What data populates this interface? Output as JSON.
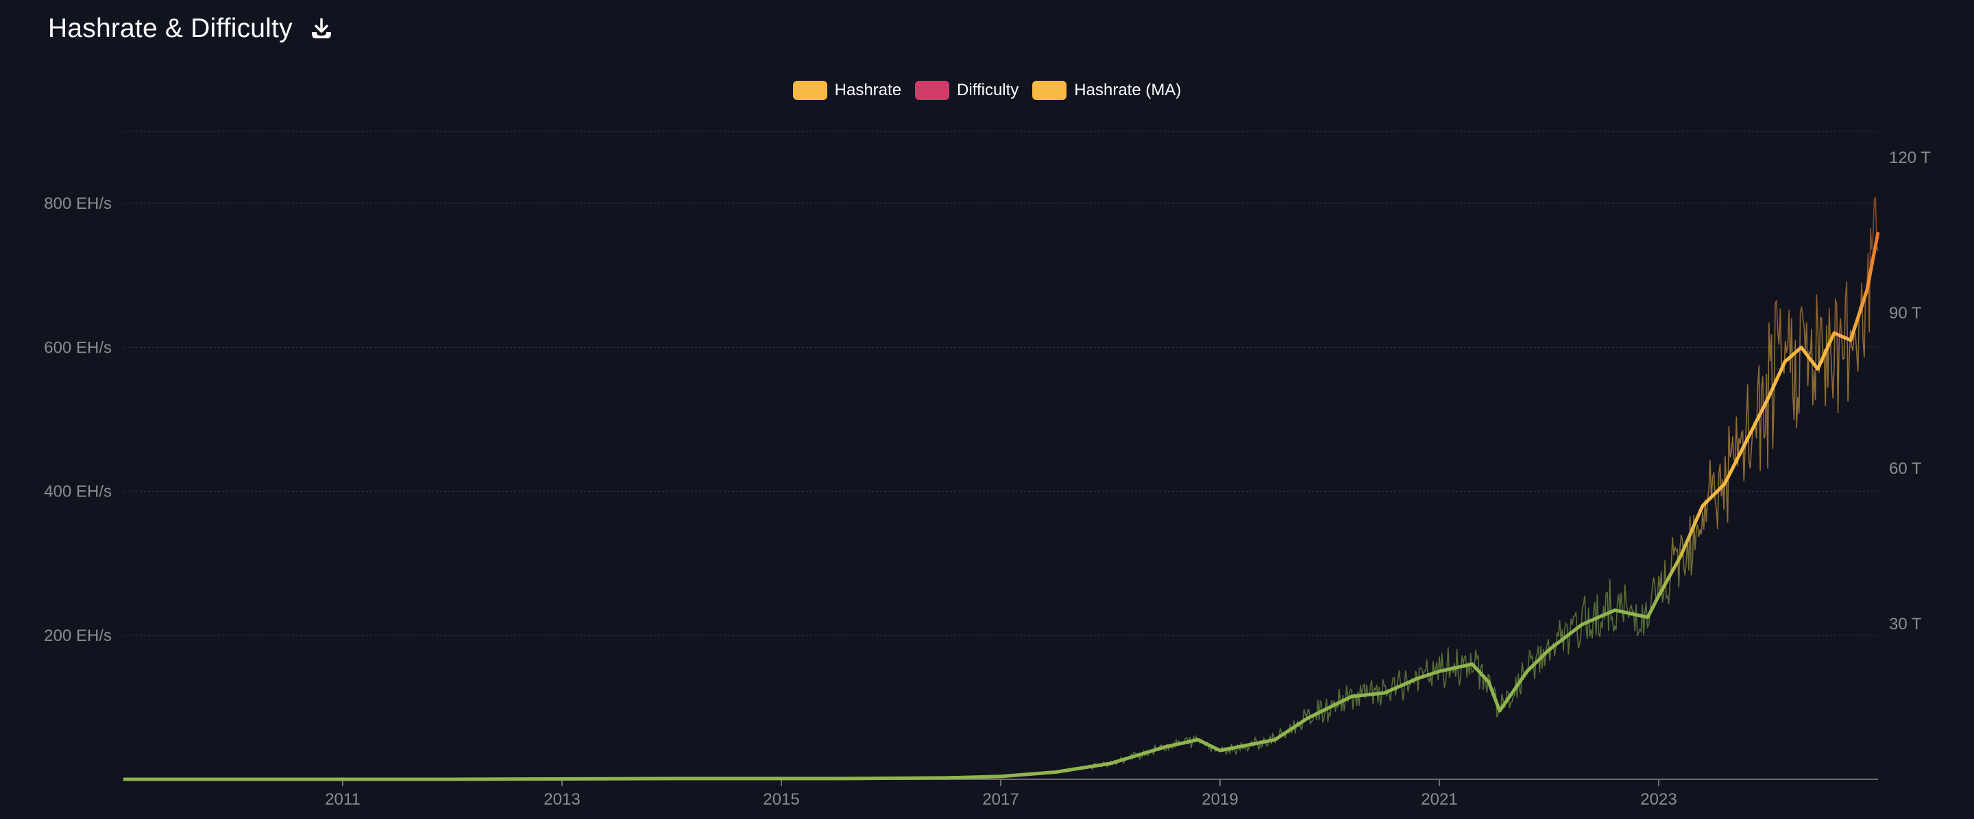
{
  "header": {
    "title": "Hashrate & Difficulty"
  },
  "legend": [
    {
      "label": "Hashrate",
      "color": "#f7b944"
    },
    {
      "label": "Difficulty",
      "color": "#d23a68"
    },
    {
      "label": "Hashrate (MA)",
      "color": "#f7b944"
    }
  ],
  "colors": {
    "background": "#11131e",
    "grid": "#2a2d38",
    "tick_text": "#8a8c94",
    "low_phase": "#8fb54e",
    "mid_phase": "#f7b944",
    "high_phase": "#e8742a",
    "difficulty": "#d23a68"
  },
  "chart_data": {
    "type": "line",
    "x_range": [
      2009.0,
      2025.0
    ],
    "x_ticks": [
      "2011",
      "2013",
      "2015",
      "2017",
      "2019",
      "2021",
      "2023"
    ],
    "y_left": {
      "unit": "EH/s",
      "range": [
        0,
        900
      ],
      "ticks": [
        {
          "value": 200,
          "label": "200 EH/s"
        },
        {
          "value": 400,
          "label": "400 EH/s"
        },
        {
          "value": 600,
          "label": "600 EH/s"
        },
        {
          "value": 800,
          "label": "800 EH/s"
        }
      ]
    },
    "y_right": {
      "unit": "T",
      "range": [
        0,
        125
      ],
      "ticks": [
        {
          "value": 30,
          "label": "30 T"
        },
        {
          "value": 60,
          "label": "60 T"
        },
        {
          "value": 90,
          "label": "90 T"
        },
        {
          "value": 120,
          "label": "120 T"
        }
      ]
    },
    "grid": true,
    "legend_position": "top-center",
    "series": [
      {
        "name": "Hashrate (MA)",
        "axis": "left",
        "x": [
          2009.0,
          2012.0,
          2014.0,
          2015.5,
          2016.5,
          2017.0,
          2017.5,
          2018.0,
          2018.5,
          2018.8,
          2019.0,
          2019.5,
          2019.8,
          2020.2,
          2020.5,
          2020.8,
          2021.0,
          2021.3,
          2021.45,
          2021.55,
          2021.8,
          2022.0,
          2022.3,
          2022.6,
          2022.9,
          2023.0,
          2023.2,
          2023.4,
          2023.6,
          2023.8,
          2024.0,
          2024.15,
          2024.3,
          2024.45,
          2024.6,
          2024.75,
          2024.9,
          2025.0
        ],
        "values": [
          0,
          0,
          1,
          1,
          2,
          4,
          10,
          22,
          45,
          55,
          40,
          55,
          85,
          115,
          120,
          140,
          150,
          160,
          135,
          95,
          150,
          180,
          215,
          235,
          225,
          255,
          310,
          380,
          410,
          470,
          530,
          580,
          600,
          570,
          620,
          610,
          680,
          760
        ]
      },
      {
        "name": "Difficulty",
        "axis": "right",
        "x": [
          2009.0,
          2012.0,
          2014.0,
          2015.5,
          2016.5,
          2017.0,
          2017.5,
          2018.0,
          2018.5,
          2018.8,
          2019.0,
          2019.5,
          2019.8,
          2020.2,
          2020.5,
          2020.8,
          2021.0,
          2021.3,
          2021.45,
          2021.55,
          2021.8,
          2022.0,
          2022.3,
          2022.6,
          2022.9,
          2023.0,
          2023.2,
          2023.4,
          2023.6,
          2023.8,
          2024.0,
          2024.15,
          2024.3,
          2024.45,
          2024.6,
          2024.75,
          2024.9,
          2025.0
        ],
        "values": [
          0,
          0,
          0.1,
          0.1,
          0.3,
          0.5,
          1.4,
          3,
          6.3,
          7.6,
          5.6,
          7.6,
          11.8,
          16,
          16.7,
          19.4,
          20.8,
          22.2,
          18.8,
          13.2,
          20.8,
          25,
          29.9,
          32.6,
          31.3,
          35.4,
          43.1,
          52.8,
          57,
          65.3,
          73.6,
          80.6,
          83.3,
          79.2,
          86.1,
          84.7,
          94.4,
          105.5
        ]
      }
    ]
  }
}
